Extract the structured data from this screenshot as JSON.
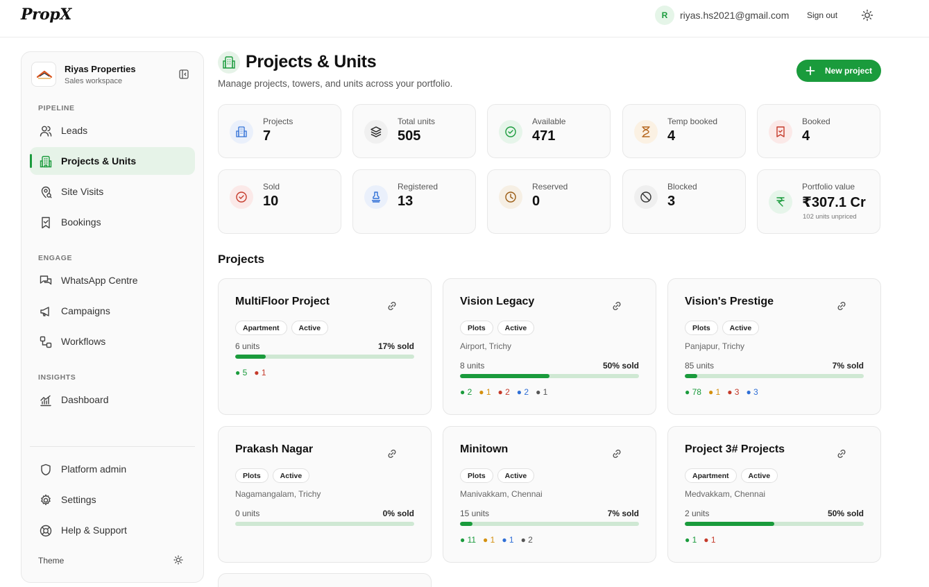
{
  "topbar": {
    "logo": "PropX",
    "user_initial": "R",
    "user_email": "riyas.hs2021@gmail.com",
    "signout_label": "Sign out"
  },
  "sidebar": {
    "workspace_name": "Riyas Properties",
    "workspace_sub": "Sales workspace",
    "sections": {
      "pipeline": "PIPELINE",
      "engage": "ENGAGE",
      "insights": "INSIGHTS"
    },
    "items": {
      "leads": "Leads",
      "projects": "Projects & Units",
      "site_visits": "Site Visits",
      "bookings": "Bookings",
      "whatsapp": "WhatsApp Centre",
      "campaigns": "Campaigns",
      "workflows": "Workflows",
      "dashboard": "Dashboard",
      "platform_admin": "Platform admin",
      "settings": "Settings",
      "help": "Help & Support"
    },
    "theme_label": "Theme"
  },
  "header": {
    "title": "Projects & Units",
    "subtitle": "Manage projects, towers, and units across your portfolio.",
    "new_button": "New project"
  },
  "stats": {
    "projects": {
      "label": "Projects",
      "value": "7"
    },
    "total_units": {
      "label": "Total units",
      "value": "505"
    },
    "available": {
      "label": "Available",
      "value": "471"
    },
    "temp_booked": {
      "label": "Temp booked",
      "value": "4"
    },
    "booked": {
      "label": "Booked",
      "value": "4"
    },
    "sold": {
      "label": "Sold",
      "value": "10"
    },
    "registered": {
      "label": "Registered",
      "value": "13"
    },
    "reserved": {
      "label": "Reserved",
      "value": "0"
    },
    "blocked": {
      "label": "Blocked",
      "value": "3"
    },
    "portfolio": {
      "label": "Portfolio value",
      "value": "₹307.1 Cr",
      "note": "102 units unpriced"
    }
  },
  "projects_heading": "Projects",
  "projects": [
    {
      "name": "MultiFloor Project",
      "type": "Apartment",
      "status": "Active",
      "location": "",
      "units": "6 units",
      "sold": "17% sold",
      "sold_fraction": 0.17,
      "legend": [
        {
          "kind": "av",
          "text": "● 5"
        },
        {
          "kind": "bk",
          "text": "● 1"
        }
      ]
    },
    {
      "name": "Vision Legacy",
      "type": "Plots",
      "status": "Active",
      "location": "Airport, Trichy",
      "units": "8 units",
      "sold": "50% sold",
      "sold_fraction": 0.5,
      "legend": [
        {
          "kind": "av",
          "text": "● 2"
        },
        {
          "kind": "tb",
          "text": "● 1"
        },
        {
          "kind": "bk",
          "text": "● 2"
        },
        {
          "kind": "rg",
          "text": "● 2"
        },
        {
          "kind": "bl",
          "text": "● 1"
        }
      ]
    },
    {
      "name": "Vision's Prestige",
      "type": "Plots",
      "status": "Active",
      "location": "Panjapur, Trichy",
      "units": "85 units",
      "sold": "7% sold",
      "sold_fraction": 0.07,
      "legend": [
        {
          "kind": "av",
          "text": "● 78"
        },
        {
          "kind": "tb",
          "text": "● 1"
        },
        {
          "kind": "bk",
          "text": "● 3"
        },
        {
          "kind": "rg",
          "text": "● 3"
        }
      ]
    },
    {
      "name": "Prakash Nagar",
      "type": "Plots",
      "status": "Active",
      "location": "Nagamangalam, Trichy",
      "units": "0 units",
      "sold": "0% sold",
      "sold_fraction": 0,
      "legend": []
    },
    {
      "name": "Minitown",
      "type": "Plots",
      "status": "Active",
      "location": "Manivakkam, Chennai",
      "units": "15 units",
      "sold": "7% sold",
      "sold_fraction": 0.07,
      "legend": [
        {
          "kind": "av",
          "text": "● 11"
        },
        {
          "kind": "tb",
          "text": "● 1"
        },
        {
          "kind": "rg",
          "text": "● 1"
        },
        {
          "kind": "bl",
          "text": "● 2"
        }
      ]
    },
    {
      "name": "Project 3# Projects",
      "type": "Apartment",
      "status": "Active",
      "location": "Medvakkam, Chennai",
      "units": "2 units",
      "sold": "50% sold",
      "sold_fraction": 0.5,
      "legend": [
        {
          "kind": "av",
          "text": "● 1"
        },
        {
          "kind": "bk",
          "text": "● 1"
        }
      ]
    }
  ],
  "colors": {
    "accent": "#1a9b3c"
  }
}
